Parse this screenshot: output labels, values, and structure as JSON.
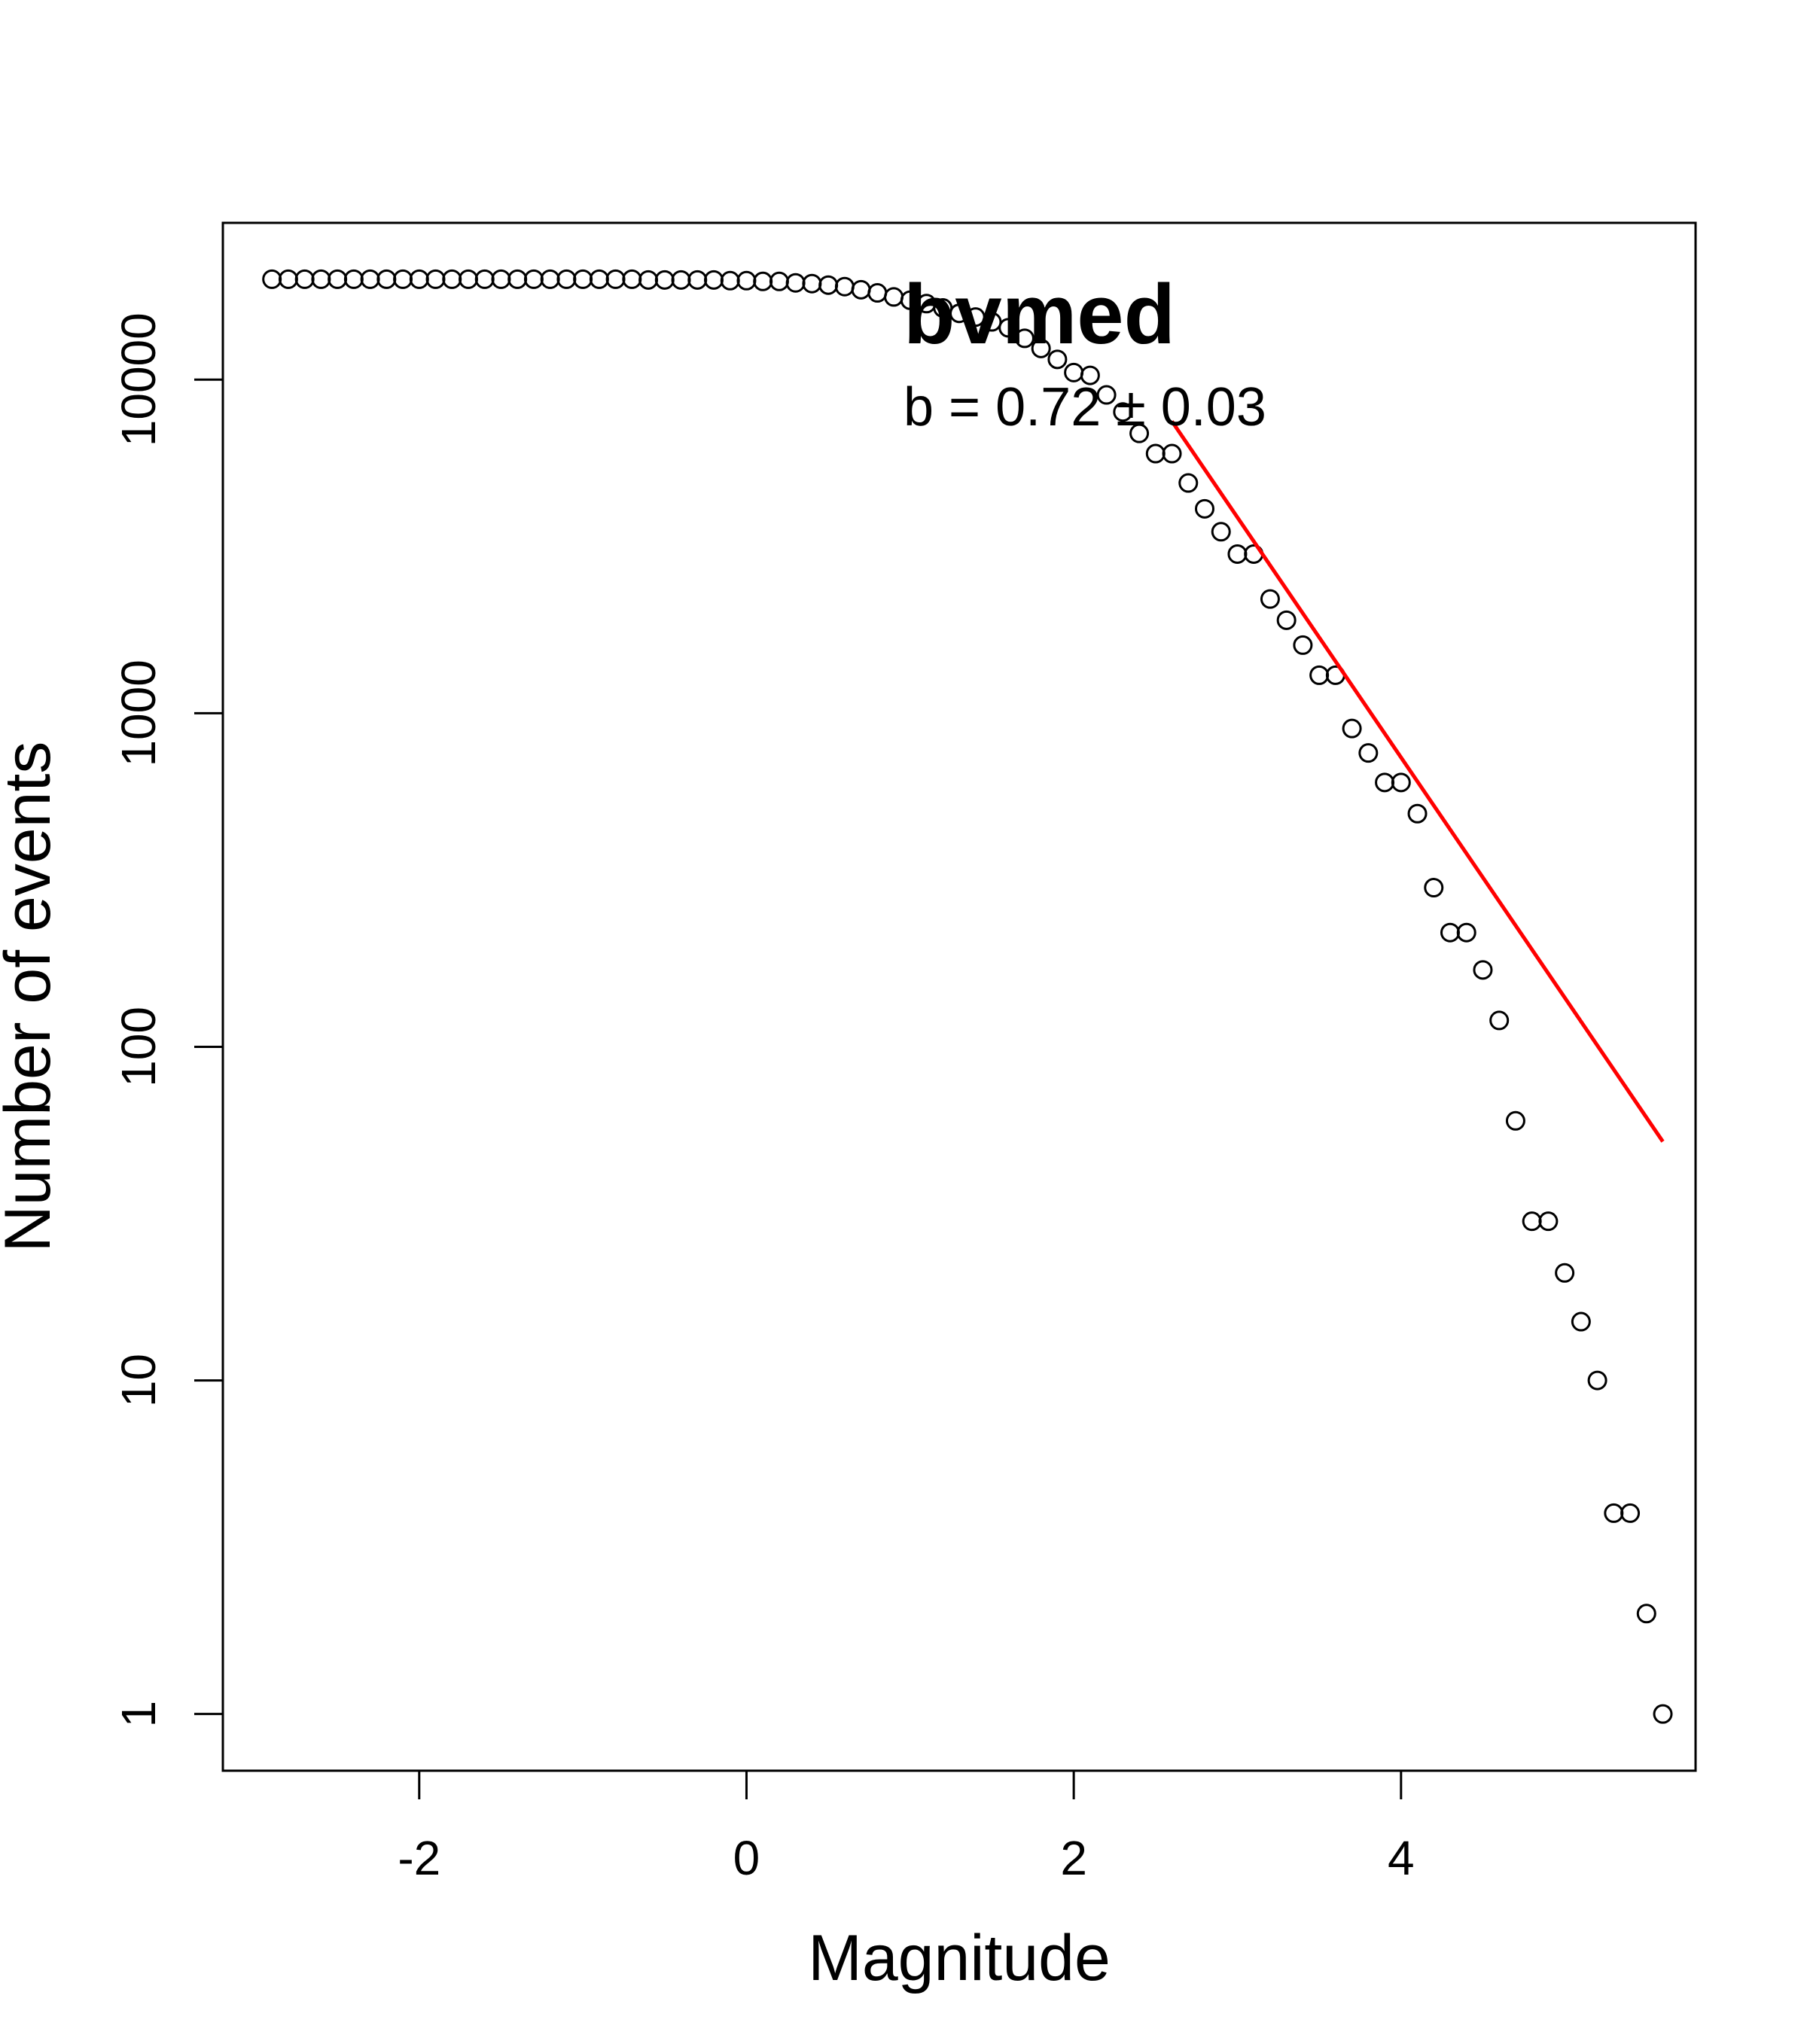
{
  "chart_data": {
    "type": "scatter",
    "title": "bvmed",
    "annotation": "b = 0.72 ± 0.03",
    "xlabel": "Magnitude",
    "ylabel": "Number of events",
    "xlim": [
      -3.2,
      5.8
    ],
    "ylim_log10": [
      -0.17,
      4.47
    ],
    "y_scale": "log",
    "grid": false,
    "legend": "none",
    "colors": {
      "points": "#000000",
      "fit_line": "#ff0000"
    },
    "x_ticks": [
      -2,
      0,
      2,
      4
    ],
    "x_tick_labels": [
      "-2",
      "0",
      "2",
      "4"
    ],
    "y_ticks": [
      1,
      10,
      100,
      1000,
      10000
    ],
    "y_tick_labels": [
      "1",
      "10",
      "100",
      "1000",
      "10000"
    ],
    "series": [
      {
        "x": [
          -2.9,
          -2.8,
          -2.7,
          -2.6,
          -2.5,
          -2.4,
          -2.3,
          -2.2,
          -2.1,
          -2.0,
          -1.9,
          -1.8,
          -1.7,
          -1.6,
          -1.5,
          -1.4,
          -1.3,
          -1.2,
          -1.1,
          -1.0,
          -0.9,
          -0.8,
          -0.7,
          -0.6,
          -0.5,
          -0.4,
          -0.3,
          -0.2,
          -0.1,
          0.0,
          0.1,
          0.2,
          0.3,
          0.4,
          0.5,
          0.6,
          0.7,
          0.8,
          0.9,
          1.0,
          1.1,
          1.2,
          1.3,
          1.4,
          1.5,
          1.6,
          1.7,
          1.8,
          1.9,
          2.0,
          2.1,
          2.2,
          2.3,
          2.4,
          2.5,
          2.6,
          2.7,
          2.8,
          2.9,
          3.0,
          3.1,
          3.2,
          3.3,
          3.4,
          3.5,
          3.6,
          3.7,
          3.8,
          3.9,
          4.0,
          4.1,
          4.2,
          4.3,
          4.4,
          4.5,
          4.6,
          4.7,
          4.8,
          4.9,
          5.0,
          5.1,
          5.2,
          5.3,
          5.4,
          5.5,
          5.6
        ],
        "y": [
          20000,
          20000,
          20000,
          20000,
          20000,
          20000,
          20000,
          20000,
          20000,
          20000,
          20000,
          20000,
          20000,
          20000,
          20000,
          20000,
          20000,
          20000,
          20000,
          20000,
          20000,
          20000,
          20000,
          19900,
          19900,
          19900,
          19900,
          19900,
          19800,
          19800,
          19700,
          19700,
          19500,
          19400,
          19200,
          19000,
          18600,
          18200,
          17700,
          17300,
          16900,
          16400,
          15800,
          15400,
          14900,
          14300,
          13300,
          12400,
          11500,
          10500,
          10300,
          9000,
          8000,
          6900,
          6000,
          6000,
          4900,
          4100,
          3500,
          3000,
          3000,
          2200,
          1900,
          1600,
          1300,
          1300,
          900,
          760,
          620,
          620,
          500,
          300,
          220,
          220,
          170,
          120,
          60,
          30,
          30,
          21,
          15,
          10,
          4,
          4,
          2,
          1
        ]
      }
    ],
    "fit_line": {
      "x": [
        2.6,
        5.6
      ],
      "y": [
        7500,
        52
      ]
    }
  }
}
